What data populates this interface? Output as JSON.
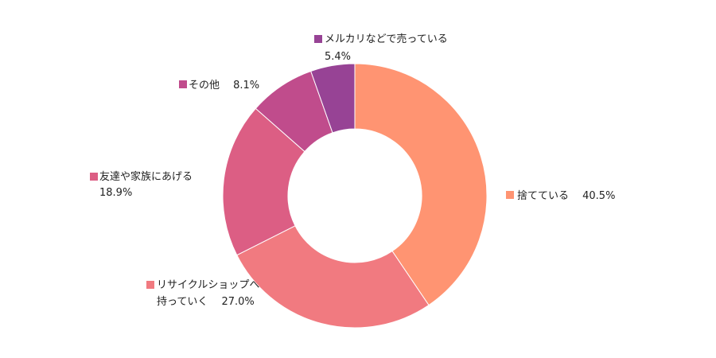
{
  "chart_data": {
    "type": "pie",
    "title": "",
    "categories": [
      "捨てている",
      "リサイクルショップへ持っていく",
      "友達や家族にあげる",
      "その他",
      "メルカリなどで売っている"
    ],
    "values": [
      40.5,
      27.0,
      18.9,
      8.1,
      5.4
    ],
    "colors": [
      "#FF9472",
      "#F17A80",
      "#DC5E84",
      "#C04C8C",
      "#974395"
    ],
    "legend": "labels beside slices",
    "labels": [
      {
        "lines": [
          "捨てている　 40.5%"
        ]
      },
      {
        "lines": [
          "リサイクルショップへ",
          "持っていく　 27.0%"
        ]
      },
      {
        "lines": [
          "友達や家族にあげる",
          "18.9%"
        ]
      },
      {
        "lines": [
          "その他　 8.1%"
        ]
      },
      {
        "lines": [
          "メルカリなどで売っている",
          "5.4%"
        ]
      }
    ]
  }
}
